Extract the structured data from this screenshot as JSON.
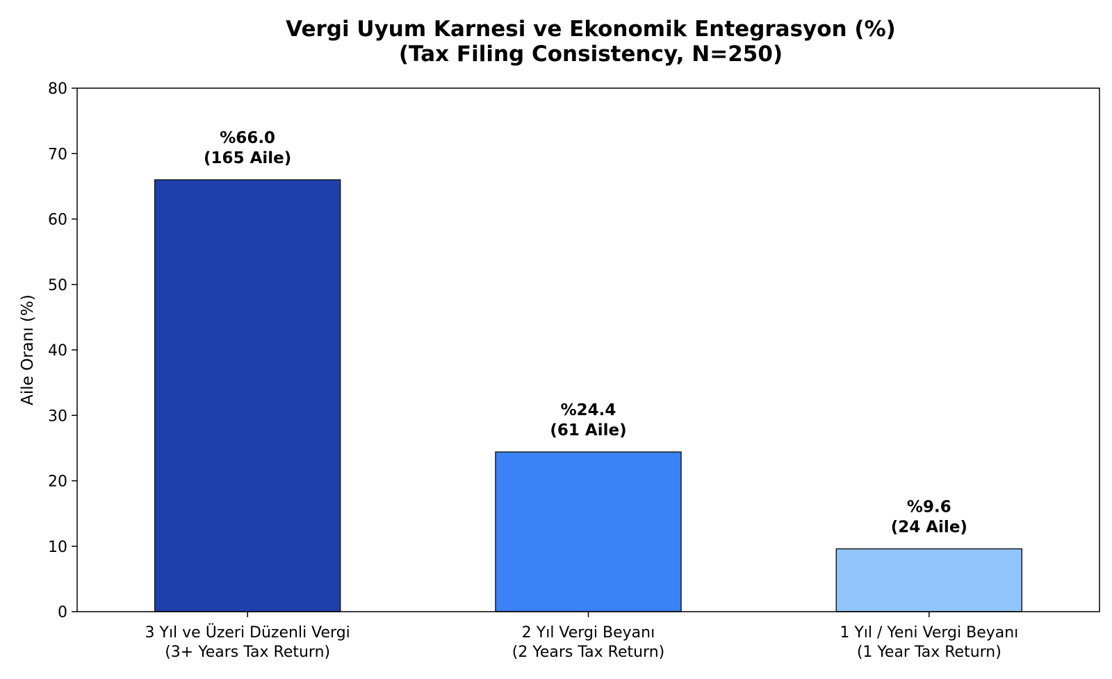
{
  "chart_data": {
    "type": "bar",
    "title": [
      "Vergi Uyum Karnesi ve Ekonomik Entegrasyon (%)",
      "(Tax Filing Consistency, N=250)"
    ],
    "xlabel": "",
    "ylabel": "Aile Oranı (%)",
    "ylim": [
      0,
      80
    ],
    "yticks": [
      0,
      10,
      20,
      30,
      40,
      50,
      60,
      70,
      80
    ],
    "grid": false,
    "categories": [
      [
        "3 Yıl ve Üzeri Düzenli Vergi",
        "(3+ Years Tax Return)"
      ],
      [
        "2 Yıl Vergi Beyanı",
        "(2 Years Tax Return)"
      ],
      [
        "1 Yıl / Yeni Vergi Beyanı",
        "(1 Year Tax Return)"
      ]
    ],
    "values": [
      66.0,
      24.4,
      9.6
    ],
    "data_labels": [
      [
        "%66.0",
        "(165 Aile)"
      ],
      [
        "%24.4",
        "(61 Aile)"
      ],
      [
        "%9.6",
        "(24 Aile)"
      ]
    ],
    "colors": [
      "#1f40ad",
      "#3b82f6",
      "#93c5fd"
    ],
    "edge_color": "#1a1a1a"
  }
}
